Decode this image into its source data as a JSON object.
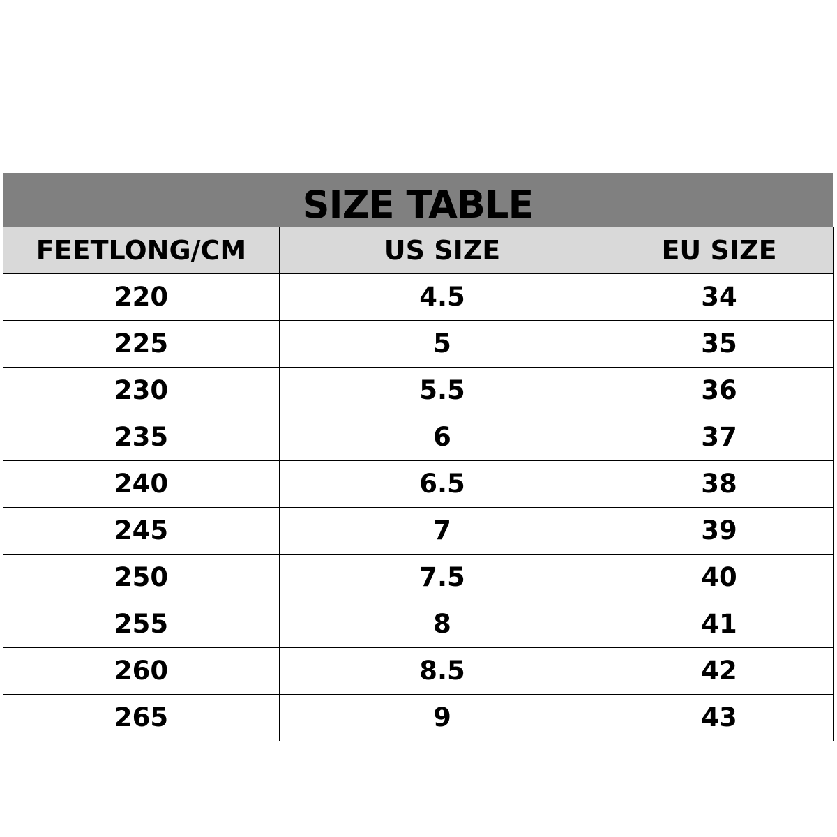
{
  "title": "SIZE TABLE",
  "columns": [
    "FEETLONG/CM",
    "US SIZE",
    "EU SIZE"
  ],
  "rows": [
    [
      "220",
      "4.5",
      "34"
    ],
    [
      "225",
      "5",
      "35"
    ],
    [
      "230",
      "5.5",
      "36"
    ],
    [
      "235",
      "6",
      "37"
    ],
    [
      "240",
      "6.5",
      "38"
    ],
    [
      "245",
      "7",
      "39"
    ],
    [
      "250",
      "7.5",
      "40"
    ],
    [
      "255",
      "8",
      "41"
    ],
    [
      "260",
      "8.5",
      "42"
    ],
    [
      "265",
      "9",
      "43"
    ]
  ],
  "colors": {
    "title_bg": "#808080",
    "header_bg": "#d9d9d9",
    "text": "#000000"
  }
}
